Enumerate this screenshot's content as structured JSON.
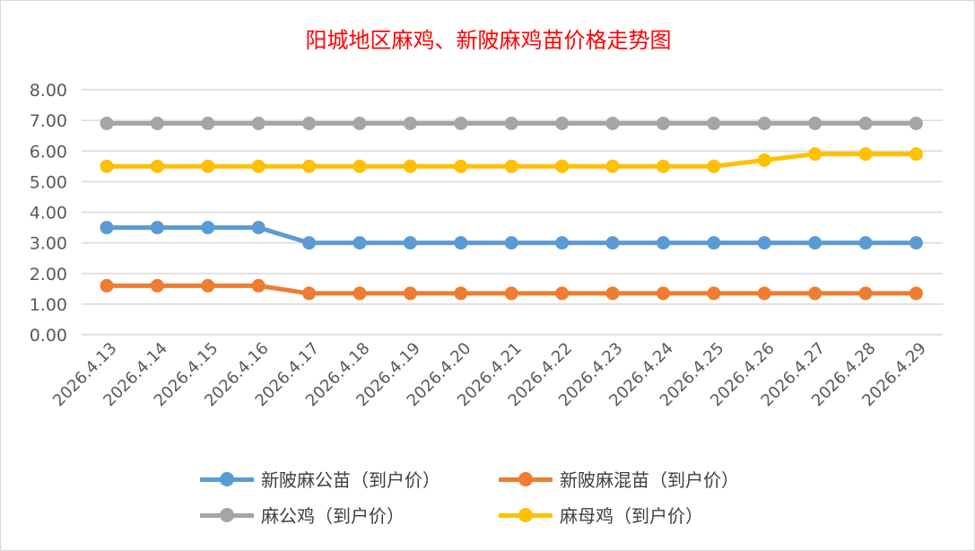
{
  "chart_data": {
    "type": "line",
    "title": "阳城地区麻鸡、新陂麻鸡苗价格走势图",
    "categories": [
      "2026.4.13",
      "2026.4.14",
      "2026.4.15",
      "2026.4.16",
      "2026.4.17",
      "2026.4.18",
      "2026.4.19",
      "2026.4.20",
      "2026.4.21",
      "2026.4.22",
      "2026.4.23",
      "2026.4.24",
      "2026.4.25",
      "2026.4.26",
      "2026.4.27",
      "2026.4.28",
      "2026.4.29"
    ],
    "yticks": [
      "0.00",
      "1.00",
      "2.00",
      "3.00",
      "4.00",
      "5.00",
      "6.00",
      "7.00",
      "8.00"
    ],
    "ylim": [
      0,
      8
    ],
    "grid": true,
    "legend_position": "bottom",
    "series": [
      {
        "name": "新陂麻公苗（到户价）",
        "color": "#5b9bd5",
        "values": [
          3.5,
          3.5,
          3.5,
          3.5,
          3.0,
          3.0,
          3.0,
          3.0,
          3.0,
          3.0,
          3.0,
          3.0,
          3.0,
          3.0,
          3.0,
          3.0,
          3.0
        ]
      },
      {
        "name": "新陂麻混苗（到户价）",
        "color": "#ed7d31",
        "values": [
          1.6,
          1.6,
          1.6,
          1.6,
          1.35,
          1.35,
          1.35,
          1.35,
          1.35,
          1.35,
          1.35,
          1.35,
          1.35,
          1.35,
          1.35,
          1.35,
          1.35
        ]
      },
      {
        "name": "麻公鸡（到户价）",
        "color": "#a5a5a5",
        "values": [
          6.9,
          6.9,
          6.9,
          6.9,
          6.9,
          6.9,
          6.9,
          6.9,
          6.9,
          6.9,
          6.9,
          6.9,
          6.9,
          6.9,
          6.9,
          6.9,
          6.9
        ]
      },
      {
        "name": "麻母鸡（到户价）",
        "color": "#ffc000",
        "values": [
          5.5,
          5.5,
          5.5,
          5.5,
          5.5,
          5.5,
          5.5,
          5.5,
          5.5,
          5.5,
          5.5,
          5.5,
          5.5,
          5.7,
          5.9,
          5.9,
          5.9
        ]
      }
    ]
  }
}
